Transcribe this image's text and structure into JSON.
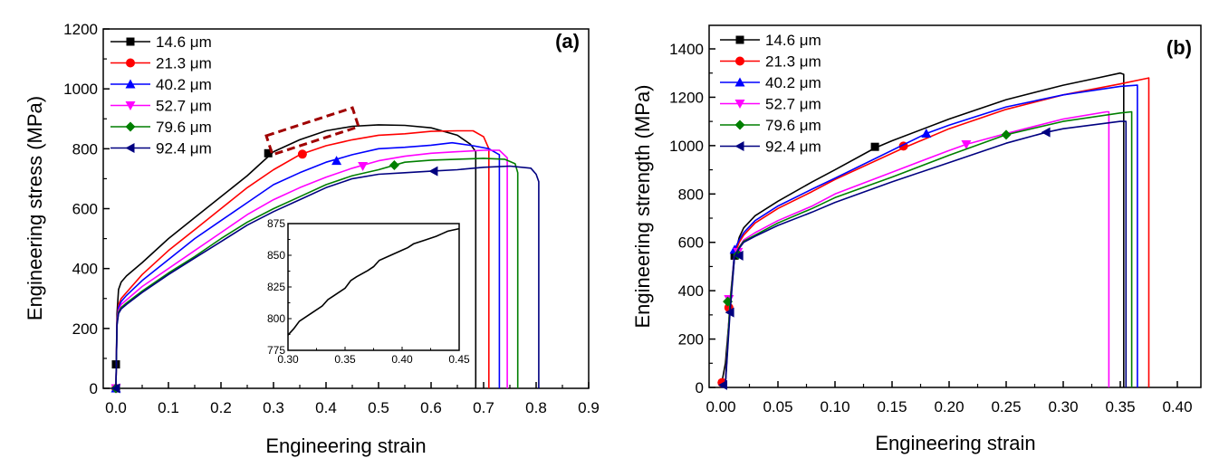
{
  "chart_data": [
    {
      "type": "line",
      "panel_label": "(a)",
      "xlabel": "Engineering strain",
      "ylabel": "Engineering stress (MPa)",
      "xlim": [
        -0.03,
        0.9
      ],
      "ylim": [
        0,
        1200
      ],
      "xticks": [
        "0.0",
        "0.1",
        "0.2",
        "0.3",
        "0.4",
        "0.5",
        "0.6",
        "0.7",
        "0.8",
        "0.9"
      ],
      "xtick_values": [
        0,
        0.1,
        0.2,
        0.3,
        0.4,
        0.5,
        0.6,
        0.7,
        0.8,
        0.9
      ],
      "yticks": [
        "0",
        "200",
        "400",
        "600",
        "800",
        "1000",
        "1200"
      ],
      "ytick_values": [
        0,
        200,
        400,
        600,
        800,
        1000,
        1200
      ],
      "legend_placement": "top-left",
      "grid": false,
      "annotation": "dashed red box highlighting serrations at strain 0.30-0.45",
      "series": [
        {
          "name": "14.6 μm",
          "color": "#000000",
          "marker": "square",
          "x": [
            0,
            0.002,
            0.005,
            0.01,
            0.02,
            0.05,
            0.1,
            0.15,
            0.2,
            0.25,
            0.3,
            0.35,
            0.4,
            0.45,
            0.5,
            0.55,
            0.6,
            0.65,
            0.675,
            0.685,
            0.685
          ],
          "y": [
            0,
            250,
            330,
            355,
            375,
            420,
            500,
            570,
            640,
            710,
            790,
            830,
            860,
            875,
            880,
            878,
            870,
            845,
            815,
            790,
            0
          ],
          "marker_points": [
            [
              0,
              80
            ],
            [
              0.29,
              785
            ]
          ]
        },
        {
          "name": "21.3 μm",
          "color": "#ff0000",
          "marker": "circle",
          "x": [
            0,
            0.002,
            0.005,
            0.01,
            0.02,
            0.05,
            0.1,
            0.15,
            0.2,
            0.25,
            0.3,
            0.35,
            0.4,
            0.45,
            0.5,
            0.55,
            0.6,
            0.65,
            0.68,
            0.7,
            0.71,
            0.71
          ],
          "y": [
            0,
            230,
            280,
            300,
            320,
            380,
            460,
            530,
            600,
            670,
            730,
            780,
            810,
            830,
            845,
            850,
            858,
            860,
            860,
            840,
            800,
            0
          ],
          "marker_points": [
            [
              0,
              0
            ],
            [
              0.355,
              782
            ]
          ]
        },
        {
          "name": "40.2 μm",
          "color": "#0000ff",
          "marker": "triangle-up",
          "x": [
            0,
            0.002,
            0.005,
            0.01,
            0.02,
            0.05,
            0.1,
            0.15,
            0.2,
            0.25,
            0.3,
            0.35,
            0.4,
            0.45,
            0.5,
            0.55,
            0.6,
            0.64,
            0.68,
            0.71,
            0.73,
            0.73
          ],
          "y": [
            0,
            225,
            270,
            290,
            310,
            360,
            430,
            500,
            560,
            620,
            680,
            720,
            755,
            780,
            800,
            805,
            812,
            820,
            810,
            800,
            780,
            0
          ],
          "marker_points": [
            [
              0,
              0
            ],
            [
              0.42,
              760
            ]
          ]
        },
        {
          "name": "52.7 μm",
          "color": "#ff00ff",
          "marker": "triangle-down",
          "x": [
            0,
            0.002,
            0.005,
            0.01,
            0.02,
            0.05,
            0.1,
            0.15,
            0.2,
            0.25,
            0.3,
            0.35,
            0.4,
            0.45,
            0.5,
            0.55,
            0.6,
            0.65,
            0.7,
            0.73,
            0.745,
            0.745
          ],
          "y": [
            0,
            220,
            260,
            280,
            295,
            340,
            400,
            460,
            520,
            580,
            630,
            670,
            705,
            735,
            760,
            775,
            785,
            790,
            795,
            795,
            770,
            0
          ],
          "marker_points": [
            [
              0,
              0
            ],
            [
              0.47,
              742
            ]
          ]
        },
        {
          "name": "79.6 μm",
          "color": "#007f00",
          "marker": "diamond",
          "x": [
            0,
            0.002,
            0.005,
            0.01,
            0.02,
            0.05,
            0.1,
            0.15,
            0.2,
            0.25,
            0.3,
            0.35,
            0.4,
            0.45,
            0.5,
            0.55,
            0.6,
            0.65,
            0.7,
            0.74,
            0.76,
            0.765,
            0.765
          ],
          "y": [
            0,
            215,
            255,
            270,
            285,
            325,
            385,
            440,
            500,
            555,
            600,
            640,
            680,
            710,
            730,
            755,
            762,
            765,
            768,
            765,
            750,
            720,
            0
          ],
          "marker_points": [
            [
              0,
              0
            ],
            [
              0.53,
              745
            ]
          ]
        },
        {
          "name": "92.4 μm",
          "color": "#000080",
          "marker": "triangle-left",
          "x": [
            0,
            0.002,
            0.005,
            0.01,
            0.02,
            0.05,
            0.1,
            0.15,
            0.2,
            0.25,
            0.3,
            0.35,
            0.4,
            0.45,
            0.5,
            0.55,
            0.6,
            0.65,
            0.7,
            0.75,
            0.79,
            0.8,
            0.805,
            0.805
          ],
          "y": [
            0,
            210,
            250,
            265,
            280,
            320,
            380,
            435,
            490,
            545,
            590,
            630,
            670,
            700,
            715,
            720,
            725,
            730,
            738,
            742,
            735,
            715,
            690,
            0
          ],
          "marker_points": [
            [
              0,
              0
            ],
            [
              0.605,
              725
            ]
          ]
        }
      ],
      "inset": {
        "xlim": [
          0.3,
          0.45
        ],
        "ylim": [
          775,
          875
        ],
        "xticks": [
          "0.30",
          "0.35",
          "0.40",
          "0.45"
        ],
        "xtick_values": [
          0.3,
          0.35,
          0.4,
          0.45
        ],
        "yticks": [
          "775",
          "800",
          "825",
          "850",
          "875"
        ],
        "ytick_values": [
          775,
          800,
          825,
          850,
          875
        ],
        "series": {
          "color": "#000000",
          "x": [
            0.3,
            0.305,
            0.31,
            0.32,
            0.33,
            0.335,
            0.34,
            0.35,
            0.355,
            0.36,
            0.37,
            0.375,
            0.38,
            0.39,
            0.4,
            0.405,
            0.41,
            0.42,
            0.43,
            0.435,
            0.44,
            0.45
          ],
          "y": [
            787,
            792,
            798,
            804,
            810,
            815,
            818,
            824,
            830,
            833,
            838,
            841,
            846,
            850,
            854,
            856,
            859,
            862,
            865,
            867,
            869,
            871
          ]
        }
      }
    },
    {
      "type": "line",
      "panel_label": "(b)",
      "xlabel": "Engineering strain",
      "ylabel": "Engineering strength (MPa)",
      "xlim": [
        -0.005,
        0.42
      ],
      "ylim": [
        0,
        1500
      ],
      "xticks": [
        "0.00",
        "0.05",
        "0.10",
        "0.15",
        "0.20",
        "0.25",
        "0.30",
        "0.35",
        "0.40"
      ],
      "xtick_values": [
        0,
        0.05,
        0.1,
        0.15,
        0.2,
        0.25,
        0.3,
        0.35,
        0.4
      ],
      "yticks": [
        "0",
        "200",
        "400",
        "600",
        "800",
        "1000",
        "1200",
        "1400"
      ],
      "ytick_values": [
        0,
        200,
        400,
        600,
        800,
        1000,
        1200,
        1400
      ],
      "legend_placement": "top-left",
      "grid": false,
      "series": [
        {
          "name": "14.6 μm",
          "color": "#000000",
          "marker": "square",
          "x": [
            0,
            0.004,
            0.008,
            0.012,
            0.016,
            0.02,
            0.03,
            0.05,
            0.08,
            0.1,
            0.135,
            0.15,
            0.2,
            0.25,
            0.3,
            0.33,
            0.35,
            0.353,
            0.353
          ],
          "y": [
            0,
            100,
            330,
            545,
            620,
            660,
            710,
            770,
            850,
            900,
            990,
            1020,
            1110,
            1190,
            1250,
            1280,
            1300,
            1295,
            0
          ],
          "marker_points": [
            [
              0.012,
              545
            ],
            [
              0.135,
              995
            ]
          ]
        },
        {
          "name": "21.3 μm",
          "color": "#ff0000",
          "marker": "circle",
          "x": [
            0,
            0.004,
            0.008,
            0.012,
            0.016,
            0.02,
            0.03,
            0.05,
            0.08,
            0.1,
            0.16,
            0.2,
            0.25,
            0.3,
            0.35,
            0.375,
            0.375
          ],
          "y": [
            0,
            20,
            330,
            550,
            600,
            630,
            680,
            740,
            810,
            860,
            990,
            1070,
            1150,
            1210,
            1255,
            1280,
            0
          ],
          "marker_points": [
            [
              0.001,
              20
            ],
            [
              0.007,
              330
            ],
            [
              0.16,
              998
            ]
          ]
        },
        {
          "name": "40.2 μm",
          "color": "#0000ff",
          "marker": "triangle-up",
          "x": [
            0,
            0.004,
            0.008,
            0.012,
            0.016,
            0.02,
            0.03,
            0.05,
            0.08,
            0.1,
            0.18,
            0.2,
            0.25,
            0.3,
            0.35,
            0.365,
            0.365
          ],
          "y": [
            0,
            20,
            345,
            570,
            610,
            640,
            690,
            750,
            820,
            865,
            1050,
            1085,
            1160,
            1210,
            1245,
            1250,
            0
          ],
          "marker_points": [
            [
              0.012,
              570
            ],
            [
              0.18,
              1050
            ]
          ]
        },
        {
          "name": "52.7 μm",
          "color": "#ff00ff",
          "marker": "triangle-down",
          "x": [
            0,
            0.004,
            0.008,
            0.012,
            0.016,
            0.02,
            0.03,
            0.05,
            0.08,
            0.1,
            0.15,
            0.2,
            0.215,
            0.25,
            0.3,
            0.338,
            0.34,
            0.34
          ],
          "y": [
            0,
            20,
            365,
            550,
            580,
            610,
            640,
            690,
            750,
            800,
            890,
            980,
            1005,
            1050,
            1110,
            1140,
            1140,
            0
          ],
          "marker_points": [
            [
              0.007,
              365
            ],
            [
              0.015,
              560
            ],
            [
              0.215,
              1005
            ]
          ]
        },
        {
          "name": "79.6 μm",
          "color": "#007f00",
          "marker": "diamond",
          "x": [
            0,
            0.004,
            0.008,
            0.012,
            0.016,
            0.02,
            0.03,
            0.05,
            0.08,
            0.1,
            0.15,
            0.2,
            0.25,
            0.3,
            0.35,
            0.36,
            0.36
          ],
          "y": [
            0,
            15,
            355,
            545,
            580,
            605,
            630,
            680,
            740,
            785,
            870,
            960,
            1045,
            1100,
            1135,
            1140,
            0
          ],
          "marker_points": [
            [
              0.006,
              355
            ],
            [
              0.015,
              550
            ],
            [
              0.25,
              1045
            ]
          ]
        },
        {
          "name": "92.4 μm",
          "color": "#000080",
          "marker": "triangle-left",
          "x": [
            0,
            0.004,
            0.008,
            0.012,
            0.016,
            0.02,
            0.03,
            0.05,
            0.08,
            0.1,
            0.15,
            0.2,
            0.25,
            0.285,
            0.3,
            0.35,
            0.355,
            0.355
          ],
          "y": [
            0,
            10,
            310,
            540,
            575,
            600,
            625,
            670,
            725,
            765,
            850,
            930,
            1010,
            1055,
            1070,
            1100,
            1100,
            0
          ],
          "marker_points": [
            [
              0.002,
              10
            ],
            [
              0.008,
              310
            ],
            [
              0.016,
              545
            ],
            [
              0.285,
              1055
            ]
          ]
        }
      ]
    }
  ]
}
